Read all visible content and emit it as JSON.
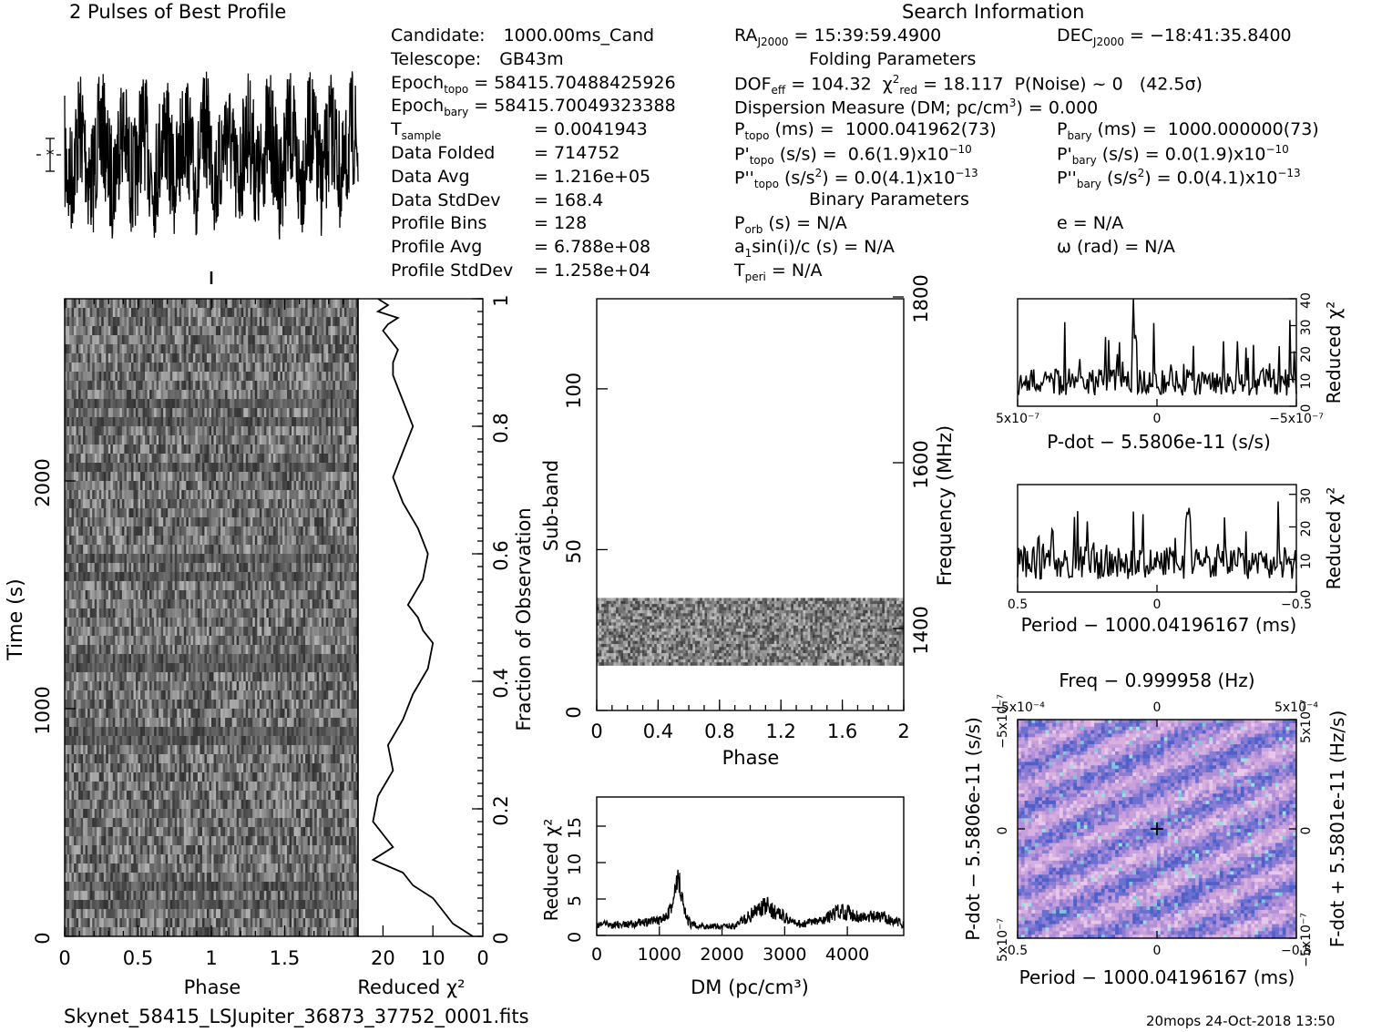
{
  "header": {
    "profile_title": "2 Pulses of Best Profile",
    "search_title": "Search Information",
    "folding_title": "Folding Parameters",
    "binary_title": "Binary Parameters"
  },
  "candidate_info": [
    {
      "label": "Candidate:",
      "value": "1000.00ms_Cand"
    },
    {
      "label": "Telescope:",
      "value": "GB43m"
    },
    {
      "label": "Epoch_topo",
      "value": "= 58415.70488425926"
    },
    {
      "label": "Epoch_bary",
      "value": "= 58415.70049323388"
    },
    {
      "label": "T_sample",
      "value": "= 0.0041943"
    },
    {
      "label": "Data Folded",
      "value": "= 714752"
    },
    {
      "label": "Data Avg",
      "value": "= 1.216e+05"
    },
    {
      "label": "Data StdDev",
      "value": "= 168.4"
    },
    {
      "label": "Profile Bins",
      "value": "= 128"
    },
    {
      "label": "Profile Avg",
      "value": "= 6.788e+08"
    },
    {
      "label": "Profile StdDev",
      "value": "= 1.258e+04"
    }
  ],
  "search_info": {
    "ra": "RA_J2000 = 15:39:59.4900",
    "dec": "DEC_J2000 = −18:41:35.8400",
    "dof": "DOF_eff = 104.32  χ²_red = 18.117  P(Noise) ~ 0   (42.5σ)",
    "dm": "Dispersion Measure (DM; pc/cm³) = 0.000",
    "p_topo": "P_topo (ms) =  1000.041962(73)",
    "p_bary": "P_bary (ms) =  1000.000000(73)",
    "pd_topo": "P'_topo (s/s) =  0.6(1.9)x10⁻¹⁰",
    "pd_bary": "P'_bary (s/s) = 0.0(1.9)x10⁻¹⁰",
    "pdd_topo": "P''_topo (s/s²) = 0.0(4.1)x10⁻¹³",
    "pdd_bary": "P''_bary (s/s²) = 0.0(4.1)x10⁻¹³",
    "p_orb": "P_orb (s) = N/A",
    "a1sini": "a₁sin(i)/c (s) = N/A",
    "t_peri": "T_peri = N/A",
    "e": "e = N/A",
    "omega": "ω (rad) = N/A"
  },
  "chart_data": [
    {
      "type": "line",
      "name": "profile",
      "title": "2 Pulses of Best Profile",
      "x_range": [
        0,
        2
      ],
      "note_shape": "noisy periodic oscillation, ~14 cycles over 2 pulses"
    },
    {
      "type": "heatmap",
      "name": "time-phase",
      "xlabel": "Phase",
      "ylabel": "Time (s)",
      "xlim": [
        0,
        2
      ],
      "ylim": [
        0,
        2500
      ],
      "xticks": [
        "0",
        "0.5",
        "1",
        "1.5"
      ],
      "yticks": [
        "0",
        "1000",
        "2000"
      ]
    },
    {
      "type": "line",
      "name": "time-reduced-chi2",
      "xlabel": "Reduced χ²",
      "ylabel": "Fraction of Observation",
      "xticks": [
        "20",
        "10",
        "0"
      ],
      "yticks": [
        "0",
        "0.2",
        "0.4",
        "0.6",
        "0.8",
        "1"
      ],
      "x": [
        2,
        6,
        8,
        10,
        14,
        16,
        22,
        18,
        22,
        21,
        18,
        19,
        16,
        14,
        11,
        10,
        12,
        13,
        15,
        12,
        11,
        13,
        16,
        18,
        16,
        14,
        15,
        16,
        17,
        18,
        18,
        17,
        19,
        20,
        19,
        17,
        21,
        19,
        21
      ],
      "y": [
        0.0,
        0.02,
        0.04,
        0.06,
        0.08,
        0.1,
        0.12,
        0.14,
        0.18,
        0.22,
        0.26,
        0.3,
        0.34,
        0.38,
        0.42,
        0.46,
        0.48,
        0.5,
        0.52,
        0.56,
        0.6,
        0.64,
        0.68,
        0.72,
        0.76,
        0.8,
        0.82,
        0.84,
        0.86,
        0.88,
        0.9,
        0.92,
        0.94,
        0.95,
        0.96,
        0.97,
        0.98,
        0.99,
        1.0
      ]
    },
    {
      "type": "heatmap",
      "name": "subband-phase",
      "xlabel": "Phase",
      "ylabel": "Sub-band",
      "y2label": "Frequency (MHz)",
      "xlim": [
        0,
        2
      ],
      "ylim": [
        0,
        128
      ],
      "xticks": [
        "0",
        "0.4",
        "0.8",
        "1.2",
        "1.6",
        "2"
      ],
      "yticks": [
        "0",
        "50",
        "100"
      ],
      "y2ticks": [
        "1400",
        "1600",
        "1800"
      ],
      "filled_subbands": [
        14,
        35
      ]
    },
    {
      "type": "line",
      "name": "dm-chi2",
      "xlabel": "DM (pc/cm³)",
      "ylabel": "Reduced χ²",
      "xlim": [
        0,
        4900
      ],
      "ylim": [
        0,
        19
      ],
      "xticks": [
        "0",
        "1000",
        "2000",
        "3000",
        "4000"
      ],
      "yticks": [
        "0",
        "5",
        "10",
        "15"
      ],
      "x": [
        0,
        500,
        1000,
        1200,
        1300,
        1350,
        1400,
        1500,
        1800,
        2200,
        2500,
        2700,
        2900,
        3200,
        3600,
        3900,
        4200,
        4600,
        4900
      ],
      "y": [
        1.5,
        1.5,
        2,
        4,
        7.5,
        6,
        3,
        1.5,
        1.2,
        1.3,
        3,
        4,
        3,
        1.5,
        2,
        3.5,
        2.5,
        2.5,
        1.5
      ]
    },
    {
      "type": "line",
      "name": "pdot-chi2",
      "xlabel": "P-dot − 5.5806e-11 (s/s)",
      "ylabel": "Reduced χ²",
      "ylim": [
        0,
        40
      ],
      "xticks": [
        "5x10⁻⁷",
        "0",
        "−5x10⁻⁷"
      ],
      "yticks": [
        "0",
        "10",
        "20",
        "30",
        "40"
      ]
    },
    {
      "type": "line",
      "name": "period-chi2",
      "xlabel": "Period − 1000.04196167 (ms)",
      "ylabel": "Reduced χ²",
      "ylim": [
        0,
        33
      ],
      "xticks": [
        "0.5",
        "0",
        "−0.5"
      ],
      "yticks": [
        "0",
        "10",
        "20",
        "30"
      ]
    },
    {
      "type": "heatmap",
      "name": "period-pdot",
      "title": "Freq − 0.999958 (Hz)",
      "xlabel": "Period − 1000.04196167 (ms)",
      "ylabel": "P-dot − 5.5806e-11 (s/s)",
      "y2label": "F-dot + 5.5801e-11 (Hz/s)",
      "xticks": [
        "0.5",
        "0",
        "−0.5"
      ],
      "x2ticks": [
        "−5x10⁻⁴",
        "0",
        "5x10⁻⁴"
      ],
      "yticks": [
        "−5x10⁻⁷",
        "0",
        "5x10⁻⁷"
      ],
      "y2ticks": [
        "5x10⁻⁷",
        "0",
        "−5x10⁻⁷"
      ]
    }
  ],
  "footer": {
    "filename": "Skynet_58415_LSJupiter_36873_37752_0001.fits",
    "stamp": "20mops 24-Oct-2018 13:50"
  }
}
